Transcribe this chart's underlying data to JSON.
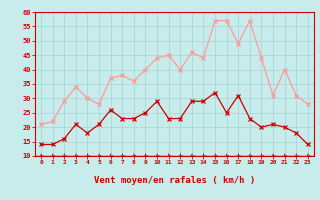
{
  "x": [
    0,
    1,
    2,
    3,
    4,
    5,
    6,
    7,
    8,
    9,
    10,
    11,
    12,
    13,
    14,
    15,
    16,
    17,
    18,
    19,
    20,
    21,
    22,
    23
  ],
  "wind_avg": [
    14,
    14,
    16,
    21,
    18,
    21,
    26,
    23,
    23,
    25,
    29,
    23,
    23,
    29,
    29,
    32,
    25,
    31,
    23,
    20,
    21,
    20,
    18,
    14
  ],
  "wind_gust": [
    21,
    22,
    29,
    34,
    30,
    28,
    37,
    38,
    36,
    40,
    44,
    45,
    40,
    46,
    44,
    57,
    57,
    49,
    57,
    44,
    31,
    40,
    31,
    28
  ],
  "xlabel": "Vent moyen/en rafales ( km/h )",
  "ylim": [
    10,
    60
  ],
  "yticks": [
    10,
    15,
    20,
    25,
    30,
    35,
    40,
    45,
    50,
    55,
    60
  ],
  "bg_color": "#c8ecec",
  "grid_color": "#a8d8d8",
  "avg_color": "#cc0000",
  "gust_color": "#ff9999",
  "xlabel_color": "#cc0000",
  "tick_color": "#cc0000",
  "arrow_color": "#cc0000",
  "spine_color": "#cc0000"
}
